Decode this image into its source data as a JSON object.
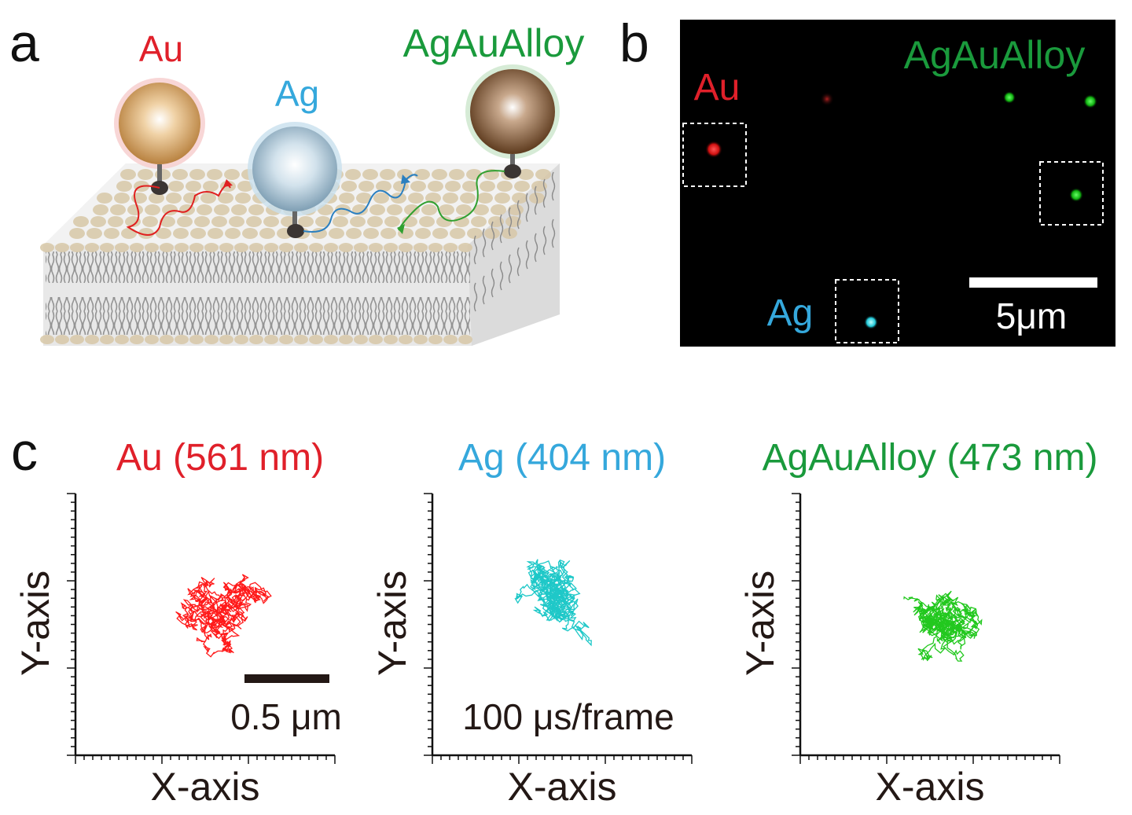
{
  "panel_a": {
    "letter": "a",
    "particles": [
      {
        "label": "Au",
        "color": "#e0202a"
      },
      {
        "label": "Ag",
        "color": "#35a8dc"
      },
      {
        "label": "AgAuAlloy",
        "color": "#1a9a3c"
      }
    ]
  },
  "panel_b": {
    "letter": "b",
    "labels": {
      "au": "Au",
      "ag": "Ag",
      "alloy": "AgAuAlloy"
    },
    "scalebar_label": "5μm",
    "colors": {
      "au": "#e0202a",
      "ag": "#35a8dc",
      "alloy": "#1a9a3c"
    }
  },
  "panel_c": {
    "letter": "c",
    "plots": [
      {
        "title": "Au (561 nm)",
        "color": "#e0202a",
        "trace_color": "#ff1a1a",
        "xlabel": "X-axis",
        "ylabel": "Y-axis",
        "annotation": "0.5 μm",
        "seed": 7
      },
      {
        "title": "Ag (404 nm)",
        "color": "#35a8dc",
        "trace_color": "#1ec8c8",
        "xlabel": "X-axis",
        "ylabel": "Y-axis",
        "annotation": "100 μs/frame",
        "seed": 19
      },
      {
        "title": "AgAuAlloy (473 nm)",
        "color": "#1a9a3c",
        "trace_color": "#22c81e",
        "xlabel": "X-axis",
        "ylabel": "Y-axis",
        "annotation": "",
        "seed": 31
      }
    ]
  }
}
